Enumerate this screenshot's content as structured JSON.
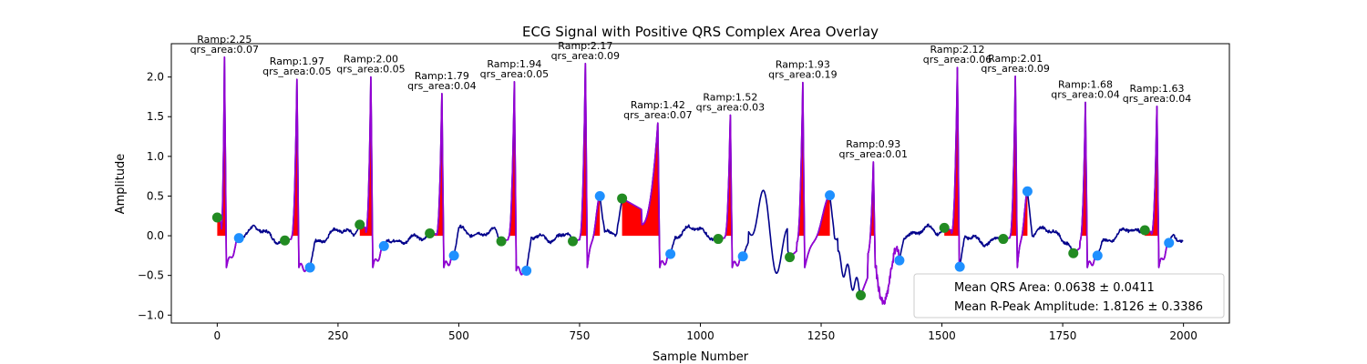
{
  "chart_data": {
    "type": "line",
    "title": "ECG Signal with Positive QRS Complex Area Overlay",
    "xlabel": "Sample Number",
    "ylabel": "Amplitude",
    "xlim": [
      -95,
      2095
    ],
    "ylim": [
      -1.1,
      2.42
    ],
    "xticks": [
      0,
      250,
      500,
      750,
      1000,
      1250,
      1500,
      1750,
      2000
    ],
    "yticks": [
      -1.0,
      -0.5,
      0.0,
      0.5,
      1.0,
      1.5,
      2.0
    ],
    "grid": false,
    "colors": {
      "signal": "#00008b",
      "qrs_segment": "#9400d3",
      "area_fill": "#ff0000",
      "onset_marker": "#228b22",
      "offset_marker": "#1e90ff"
    },
    "beats": [
      {
        "onset": [
          0,
          0.23
        ],
        "r": [
          15,
          2.25
        ],
        "offset": [
          45,
          -0.03
        ],
        "ramp_label": "Ramp:2.25",
        "area_label": "qrs_area:0.07"
      },
      {
        "onset": [
          140,
          -0.06
        ],
        "r": [
          165,
          1.97
        ],
        "offset": [
          192,
          -0.4
        ],
        "ramp_label": "Ramp:1.97",
        "area_label": "qrs_area:0.05"
      },
      {
        "onset": [
          295,
          0.14
        ],
        "r": [
          318,
          2.0
        ],
        "offset": [
          345,
          -0.13
        ],
        "ramp_label": "Ramp:2.00",
        "area_label": "qrs_area:0.05"
      },
      {
        "onset": [
          440,
          0.03
        ],
        "r": [
          465,
          1.79
        ],
        "offset": [
          490,
          -0.25
        ],
        "ramp_label": "Ramp:1.79",
        "area_label": "qrs_area:0.04"
      },
      {
        "onset": [
          588,
          -0.07
        ],
        "r": [
          615,
          1.94
        ],
        "offset": [
          640,
          -0.44
        ],
        "ramp_label": "Ramp:1.94",
        "area_label": "qrs_area:0.05"
      },
      {
        "onset": [
          736,
          -0.07
        ],
        "r": [
          762,
          2.17
        ],
        "offset": [
          792,
          0.5
        ],
        "ramp_label": "Ramp:2.17",
        "area_label": "qrs_area:0.09"
      },
      {
        "onset": [
          838,
          0.47
        ],
        "r": [
          912,
          1.42
        ],
        "offset": [
          938,
          -0.23
        ],
        "ramp_label": "Ramp:1.42",
        "area_label": "qrs_area:0.07"
      },
      {
        "onset": [
          1037,
          -0.04
        ],
        "r": [
          1062,
          1.52
        ],
        "offset": [
          1088,
          -0.26
        ],
        "ramp_label": "Ramp:1.52",
        "area_label": "qrs_area:0.03"
      },
      {
        "onset": [
          1185,
          -0.27
        ],
        "r": [
          1212,
          1.93
        ],
        "offset": [
          1268,
          0.51
        ],
        "ramp_label": "Ramp:1.93",
        "area_label": "qrs_area:0.19"
      },
      {
        "onset": [
          1332,
          -0.75
        ],
        "r": [
          1358,
          0.93
        ],
        "offset": [
          1412,
          -0.31
        ],
        "ramp_label": "Ramp:0.93",
        "area_label": "qrs_area:0.01"
      },
      {
        "onset": [
          1505,
          0.1
        ],
        "r": [
          1532,
          2.12
        ],
        "offset": [
          1537,
          -0.39
        ],
        "ramp_label": "Ramp:2.12",
        "area_label": "qrs_area:0.06"
      },
      {
        "onset": [
          1627,
          -0.04
        ],
        "r": [
          1652,
          2.01
        ],
        "offset": [
          1677,
          0.56
        ],
        "ramp_label": "Ramp:2.01",
        "area_label": "qrs_area:0.09"
      },
      {
        "onset": [
          1772,
          -0.22
        ],
        "r": [
          1797,
          1.68
        ],
        "offset": [
          1822,
          -0.25
        ],
        "ramp_label": "Ramp:1.68",
        "area_label": "qrs_area:0.04"
      },
      {
        "onset": [
          1920,
          0.07
        ],
        "r": [
          1945,
          1.63
        ],
        "offset": [
          1970,
          -0.09
        ],
        "ramp_label": "Ramp:1.63",
        "area_label": "qrs_area:0.04"
      }
    ],
    "legend": {
      "placement": "lower-right",
      "entries": [
        "Mean QRS Area: 0.0638 ± 0.0411",
        "Mean R-Peak Amplitude: 1.8126 ± 0.3386"
      ]
    }
  }
}
